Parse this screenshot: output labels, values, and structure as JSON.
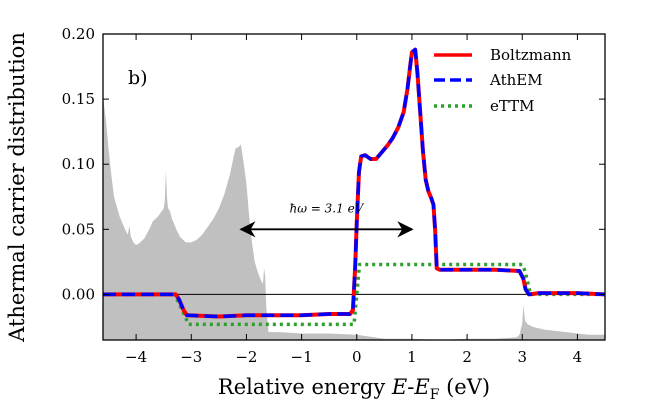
{
  "chart_data": {
    "type": "line",
    "panel_label": "b)",
    "xlabel": "Relative energy E-E_F (eV)",
    "xlabel_parts": {
      "prefix": "Relative energy ",
      "var": "E",
      "dash": "-",
      "var2": "E",
      "sub": "F",
      "suffix": " (eV)"
    },
    "ylabel": "Athermal carrier distribution",
    "xlim": [
      -4.6,
      4.5
    ],
    "ylim": [
      -0.035,
      0.2
    ],
    "xticks": [
      -4,
      -3,
      -2,
      -1,
      0,
      1,
      2,
      3,
      4
    ],
    "xtick_labels": [
      "−4",
      "−3",
      "−2",
      "−1",
      "0",
      "1",
      "2",
      "3",
      "4"
    ],
    "yticks": [
      0.0,
      0.05,
      0.1,
      0.15,
      0.2
    ],
    "ytick_labels": [
      "0.00",
      "0.05",
      "0.10",
      "0.15",
      "0.20"
    ],
    "annotation": {
      "text": "ħω = 3.1 eV",
      "x_start": -2.1,
      "x_end": 1.0,
      "y": 0.05,
      "text_x": -0.55,
      "text_y": 0.063
    },
    "zero_line": 0.0,
    "dos_background": {
      "name": "density of states (shaded)",
      "color": "#c0c0c0",
      "x": [
        -4.6,
        -4.55,
        -4.5,
        -4.45,
        -4.4,
        -4.3,
        -4.2,
        -4.15,
        -4.12,
        -4.1,
        -4.05,
        -4.0,
        -3.95,
        -3.9,
        -3.85,
        -3.8,
        -3.75,
        -3.7,
        -3.65,
        -3.6,
        -3.55,
        -3.5,
        -3.48,
        -3.46,
        -3.44,
        -3.42,
        -3.4,
        -3.38,
        -3.35,
        -3.3,
        -3.25,
        -3.2,
        -3.1,
        -3.0,
        -2.9,
        -2.8,
        -2.7,
        -2.6,
        -2.5,
        -2.4,
        -2.3,
        -2.2,
        -2.15,
        -2.1,
        -2.05,
        -2.0,
        -1.95,
        -1.9,
        -1.85,
        -1.8,
        -1.75,
        -1.7,
        -1.68,
        -1.66,
        -1.64,
        -1.6,
        -1.4,
        -1.0,
        -0.5,
        0.0,
        0.5,
        1.0,
        1.5,
        2.0,
        2.5,
        2.9,
        2.95,
        3.0,
        3.02,
        3.05,
        3.1,
        3.2,
        3.4,
        3.6,
        3.8,
        4.0,
        4.2,
        4.4,
        4.5
      ],
      "y": [
        0.152,
        0.135,
        0.112,
        0.092,
        0.075,
        0.06,
        0.05,
        0.046,
        0.053,
        0.045,
        0.04,
        0.038,
        0.039,
        0.041,
        0.043,
        0.047,
        0.051,
        0.056,
        0.058,
        0.06,
        0.063,
        0.066,
        0.072,
        0.095,
        0.0745,
        0.066,
        0.065,
        0.063,
        0.058,
        0.053,
        0.048,
        0.044,
        0.04,
        0.04,
        0.042,
        0.046,
        0.052,
        0.058,
        0.066,
        0.077,
        0.092,
        0.112,
        0.113,
        0.115,
        0.101,
        0.085,
        0.06,
        0.04,
        0.025,
        0.018,
        0.012,
        0.008,
        0.02,
        0.014,
        -0.01,
        -0.029,
        -0.029,
        -0.03,
        -0.03,
        -0.031,
        -0.034,
        -0.034,
        -0.035,
        -0.034,
        -0.034,
        -0.033,
        -0.031,
        -0.022,
        -0.008,
        -0.02,
        -0.023,
        -0.025,
        -0.027,
        -0.028,
        -0.029,
        -0.03,
        -0.031,
        -0.031,
        -0.031
      ]
    },
    "series": [
      {
        "name": "Boltzmann",
        "color": "#ff0000",
        "style": "solid",
        "x": [
          -4.6,
          -3.28,
          -3.22,
          -3.14,
          -3.08,
          -2.5,
          -2.0,
          -1.5,
          -1.0,
          -0.5,
          -0.12,
          -0.07,
          -0.03,
          0.0,
          0.04,
          0.08,
          0.15,
          0.25,
          0.35,
          0.45,
          0.55,
          0.65,
          0.75,
          0.85,
          0.92,
          0.97,
          1.0,
          1.03,
          1.06,
          1.1,
          1.15,
          1.2,
          1.25,
          1.3,
          1.35,
          1.39,
          1.42,
          1.45,
          1.5,
          2.0,
          2.5,
          2.95,
          3.02,
          3.06,
          3.12,
          3.3,
          3.6,
          4.0,
          4.5
        ],
        "y": [
          0.0,
          0.0,
          -0.004,
          -0.012,
          -0.016,
          -0.017,
          -0.016,
          -0.016,
          -0.016,
          -0.015,
          -0.015,
          -0.012,
          0.02,
          0.055,
          0.094,
          0.106,
          0.107,
          0.104,
          0.104,
          0.109,
          0.114,
          0.12,
          0.128,
          0.14,
          0.158,
          0.176,
          0.186,
          0.187,
          0.188,
          0.17,
          0.14,
          0.11,
          0.088,
          0.079,
          0.074,
          0.069,
          0.05,
          0.02,
          0.019,
          0.019,
          0.019,
          0.018,
          0.012,
          0.004,
          0.0,
          0.001,
          0.001,
          0.001,
          0.0
        ]
      },
      {
        "name": "AthEM",
        "color": "#0000ff",
        "style": "dashed",
        "x": [
          -4.6,
          -3.28,
          -3.22,
          -3.14,
          -3.08,
          -2.5,
          -2.0,
          -1.5,
          -1.0,
          -0.5,
          -0.12,
          -0.07,
          -0.03,
          0.0,
          0.04,
          0.08,
          0.15,
          0.25,
          0.35,
          0.45,
          0.55,
          0.65,
          0.75,
          0.85,
          0.92,
          0.97,
          1.0,
          1.03,
          1.06,
          1.1,
          1.15,
          1.2,
          1.25,
          1.3,
          1.35,
          1.39,
          1.42,
          1.45,
          1.5,
          2.0,
          2.5,
          2.95,
          3.02,
          3.06,
          3.12,
          3.3,
          3.6,
          4.0,
          4.5
        ],
        "y": [
          0.0,
          0.0,
          -0.004,
          -0.012,
          -0.016,
          -0.017,
          -0.016,
          -0.016,
          -0.016,
          -0.015,
          -0.015,
          -0.012,
          0.02,
          0.055,
          0.094,
          0.106,
          0.107,
          0.104,
          0.104,
          0.109,
          0.114,
          0.12,
          0.128,
          0.14,
          0.158,
          0.176,
          0.186,
          0.187,
          0.188,
          0.17,
          0.14,
          0.11,
          0.088,
          0.079,
          0.074,
          0.069,
          0.05,
          0.02,
          0.019,
          0.019,
          0.019,
          0.018,
          0.012,
          0.004,
          0.0,
          0.001,
          0.001,
          0.001,
          0.0
        ]
      },
      {
        "name": "eTTM",
        "color": "#2ca02c",
        "style": "dotted",
        "x": [
          -4.6,
          -3.3,
          -3.1,
          -3.05,
          -0.1,
          -0.05,
          0.05,
          0.1,
          3.0,
          3.05,
          3.15,
          4.5
        ],
        "y": [
          0.0,
          0.0,
          -0.018,
          -0.023,
          -0.023,
          -0.023,
          0.023,
          0.023,
          0.023,
          0.018,
          0.0,
          0.0
        ]
      }
    ],
    "legend_position": "top-right"
  }
}
